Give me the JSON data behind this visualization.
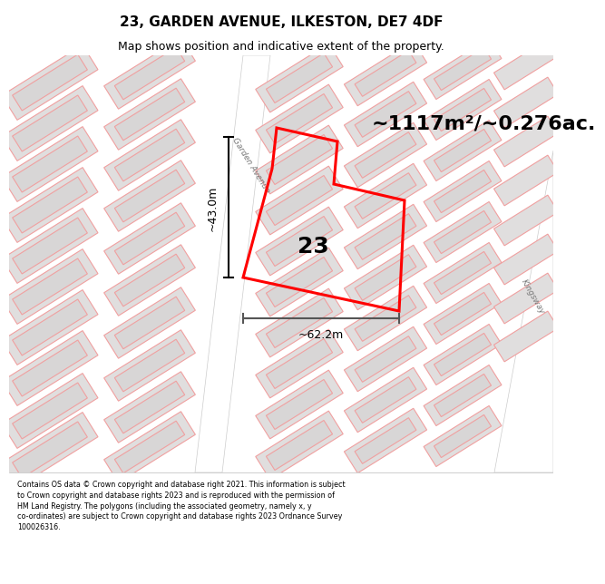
{
  "title": "23, GARDEN AVENUE, ILKESTON, DE7 4DF",
  "subtitle": "Map shows position and indicative extent of the property.",
  "footer": "Contains OS data © Crown copyright and database right 2021. This information is subject to Crown copyright and database rights 2023 and is reproduced with the permission of HM Land Registry. The polygons (including the associated geometry, namely x, y co-ordinates) are subject to Crown copyright and database rights 2023 Ordnance Survey 100026316.",
  "area_label": "~1117m²/~0.276ac.",
  "number_label": "23",
  "dim_vertical": "~43.0m",
  "dim_horizontal": "~62.2m",
  "map_bg": "#f0eeee",
  "road_fill": "#ffffff",
  "bld_fill": "#e0dede",
  "bld_edge": "#f0a0a0",
  "highlight": "#ff0000",
  "road_label1": "Garden Avenue",
  "road_label2": "Kingsway",
  "title_size": 11,
  "subtitle_size": 9,
  "footer_size": 5.8
}
